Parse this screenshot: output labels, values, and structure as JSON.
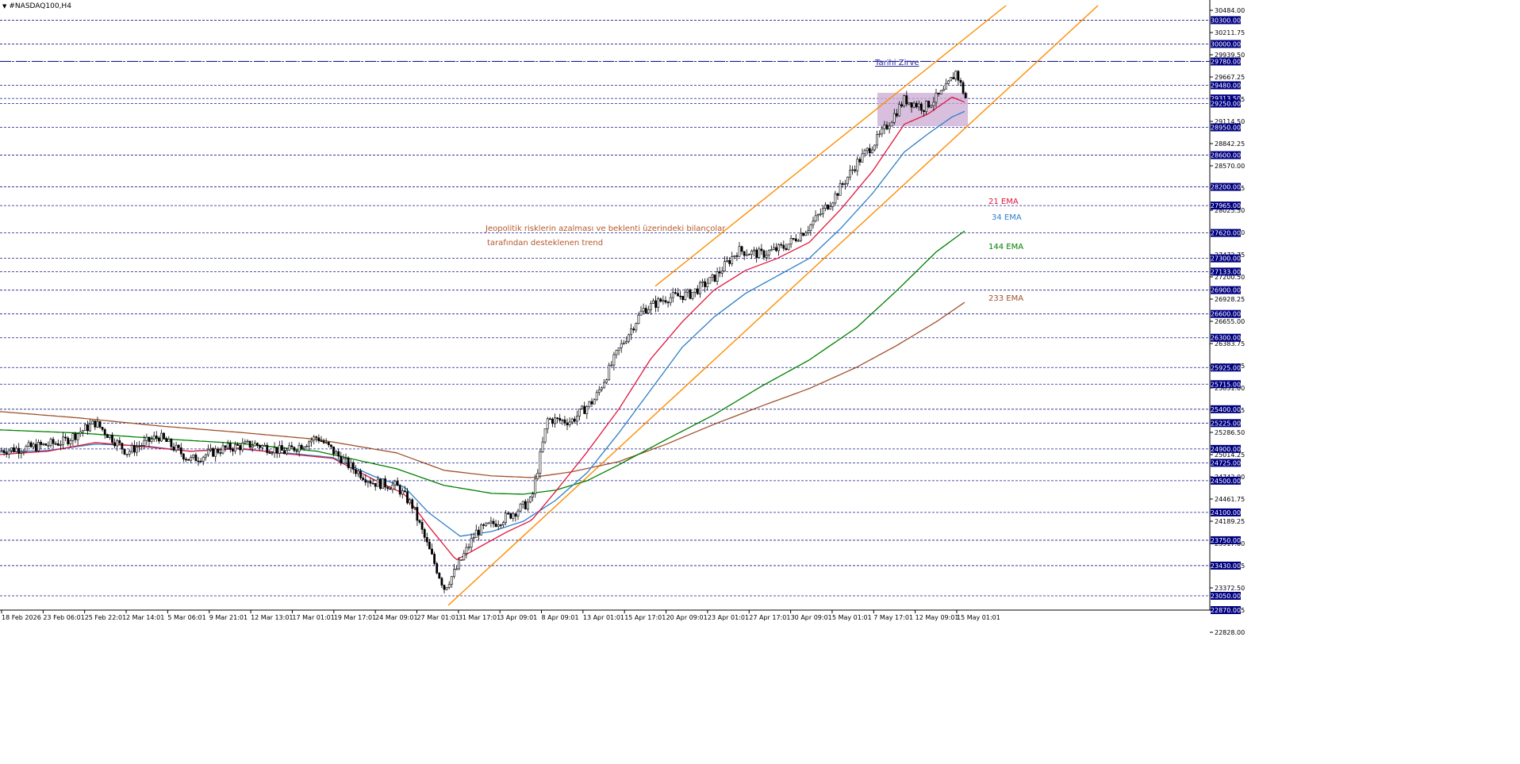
{
  "window": {
    "title": "#NASDAQ100,H4",
    "dropdown_icon": "triangle-down-icon"
  },
  "colors": {
    "background": "#ffffff",
    "grid": "#1a1a8c",
    "axis": "#000000",
    "candle": "#000000",
    "ema21": "#e0163a",
    "ema34": "#2f7fc8",
    "ema144": "#008000",
    "ema233": "#a0522d",
    "channel": "#ff8c00",
    "level_label_bg": "#000080",
    "level_label_text": "#ffffff",
    "zone": "#c9a9d1",
    "ath_line": "#1a1a8c",
    "ath_text": "#2b2b9c",
    "trend_text": "#b5582a"
  },
  "chart_data": {
    "type": "candlestick",
    "title": "#NASDAQ100,H4",
    "ylim": [
      22870,
      30484
    ],
    "x_tick_labels": [
      "18 Feb 2026",
      "23 Feb 06:01",
      "25 Feb 22:01",
      "2 Mar 14:01",
      "5 Mar 06:01",
      "9 Mar 21:01",
      "12 Mar 13:01",
      "17 Mar 01:01",
      "19 Mar 17:01",
      "24 Mar 09:01",
      "27 Mar 01:01",
      "31 Mar 17:01",
      "3 Apr 09:01",
      "8 Apr 09:01",
      "13 Apr 01:01",
      "15 Apr 17:01",
      "20 Apr 09:01",
      "23 Apr 01:01",
      "27 Apr 17:01",
      "30 Apr 09:01",
      "5 May 01:01",
      "7 May 17:01",
      "12 May 09:01",
      "15 May 01:01"
    ],
    "y_tick_labels": [
      "30484.00",
      "30211.75",
      "29939.50",
      "29667.25",
      "29386.75",
      "29114.50",
      "28842.25",
      "28570.00",
      "28297.75",
      "28025.50",
      "27745.00",
      "27472.75",
      "27200.50",
      "26928.25",
      "26655.00",
      "26383.75",
      "26103.25",
      "25831.00",
      "25558.75",
      "25286.50",
      "25014.25",
      "24742.00",
      "24461.75",
      "24189.25",
      "23917.00",
      "23644.75",
      "23372.50",
      "23100.25",
      "22828.00"
    ],
    "levels": [
      "30300.00",
      "30000.00",
      "29780.00",
      "29480.00",
      "29313.50",
      "29250.00",
      "28950.00",
      "28600.00",
      "28200.00",
      "27965.00",
      "27620.00",
      "27300.00",
      "27133.00",
      "26900.00",
      "26600.00",
      "26300.00",
      "25925.00",
      "25715.00",
      "25400.00",
      "25225.00",
      "24900.00",
      "24725.00",
      "24500.00",
      "24100.00",
      "23750.00",
      "23430.00",
      "23050.00",
      "22870.00"
    ],
    "all_time_high": {
      "label": "Tarihi Zirve",
      "value": 29780
    },
    "trend_annotation": [
      "Jeopolitik risklerin azalması ve beklenti üzerindeki bilançolar",
      "tarafından desteklenen trend"
    ],
    "indicator_labels": {
      "ema21": "21 EMA",
      "ema34": "34 EMA",
      "ema144": "144 EMA",
      "ema233": "233 EMA"
    },
    "series": [
      {
        "name": "close",
        "points": [
          [
            0,
            24880
          ],
          [
            40,
            24920
          ],
          [
            80,
            24990
          ],
          [
            120,
            25230
          ],
          [
            160,
            24860
          ],
          [
            200,
            25060
          ],
          [
            240,
            24760
          ],
          [
            280,
            24900
          ],
          [
            320,
            24960
          ],
          [
            360,
            24860
          ],
          [
            400,
            25050
          ],
          [
            440,
            24690
          ],
          [
            470,
            24480
          ],
          [
            500,
            24430
          ],
          [
            520,
            24180
          ],
          [
            540,
            23650
          ],
          [
            560,
            23150
          ],
          [
            575,
            23380
          ],
          [
            600,
            23850
          ],
          [
            640,
            24050
          ],
          [
            670,
            24250
          ],
          [
            690,
            25270
          ],
          [
            720,
            25250
          ],
          [
            750,
            25530
          ],
          [
            780,
            26150
          ],
          [
            810,
            26650
          ],
          [
            840,
            26800
          ],
          [
            870,
            26850
          ],
          [
            900,
            27050
          ],
          [
            930,
            27400
          ],
          [
            960,
            27350
          ],
          [
            990,
            27450
          ],
          [
            1020,
            27700
          ],
          [
            1050,
            28050
          ],
          [
            1080,
            28500
          ],
          [
            1110,
            28850
          ],
          [
            1140,
            29300
          ],
          [
            1165,
            29200
          ],
          [
            1190,
            29400
          ],
          [
            1205,
            29650
          ],
          [
            1218,
            29300
          ]
        ]
      },
      {
        "name": "21 EMA",
        "points": [
          [
            0,
            24830
          ],
          [
            60,
            24870
          ],
          [
            120,
            24980
          ],
          [
            180,
            24930
          ],
          [
            240,
            24870
          ],
          [
            300,
            24910
          ],
          [
            360,
            24840
          ],
          [
            420,
            24780
          ],
          [
            470,
            24520
          ],
          [
            510,
            24330
          ],
          [
            540,
            23930
          ],
          [
            575,
            23500
          ],
          [
            600,
            23640
          ],
          [
            640,
            23860
          ],
          [
            670,
            24000
          ],
          [
            700,
            24360
          ],
          [
            740,
            24860
          ],
          [
            780,
            25400
          ],
          [
            820,
            26030
          ],
          [
            860,
            26500
          ],
          [
            900,
            26900
          ],
          [
            940,
            27150
          ],
          [
            980,
            27300
          ],
          [
            1020,
            27500
          ],
          [
            1060,
            27920
          ],
          [
            1100,
            28400
          ],
          [
            1140,
            28990
          ],
          [
            1170,
            29120
          ],
          [
            1200,
            29330
          ],
          [
            1218,
            29260
          ]
        ]
      },
      {
        "name": "34 EMA",
        "points": [
          [
            0,
            24860
          ],
          [
            60,
            24880
          ],
          [
            120,
            24960
          ],
          [
            180,
            24940
          ],
          [
            240,
            24870
          ],
          [
            300,
            24900
          ],
          [
            360,
            24850
          ],
          [
            420,
            24790
          ],
          [
            470,
            24560
          ],
          [
            510,
            24420
          ],
          [
            540,
            24100
          ],
          [
            580,
            23800
          ],
          [
            620,
            23860
          ],
          [
            660,
            23990
          ],
          [
            700,
            24250
          ],
          [
            740,
            24600
          ],
          [
            780,
            25100
          ],
          [
            820,
            25640
          ],
          [
            860,
            26180
          ],
          [
            900,
            26560
          ],
          [
            940,
            26860
          ],
          [
            980,
            27080
          ],
          [
            1020,
            27300
          ],
          [
            1060,
            27680
          ],
          [
            1100,
            28120
          ],
          [
            1140,
            28640
          ],
          [
            1170,
            28870
          ],
          [
            1200,
            29080
          ],
          [
            1218,
            29160
          ]
        ]
      },
      {
        "name": "144 EMA",
        "points": [
          [
            0,
            25140
          ],
          [
            100,
            25100
          ],
          [
            200,
            25030
          ],
          [
            300,
            24970
          ],
          [
            400,
            24870
          ],
          [
            500,
            24650
          ],
          [
            560,
            24440
          ],
          [
            620,
            24340
          ],
          [
            660,
            24330
          ],
          [
            700,
            24380
          ],
          [
            740,
            24500
          ],
          [
            780,
            24700
          ],
          [
            840,
            25020
          ],
          [
            900,
            25330
          ],
          [
            960,
            25690
          ],
          [
            1020,
            26020
          ],
          [
            1080,
            26430
          ],
          [
            1130,
            26890
          ],
          [
            1180,
            27380
          ],
          [
            1218,
            27660
          ]
        ]
      },
      {
        "name": "233 EMA",
        "points": [
          [
            0,
            25370
          ],
          [
            100,
            25290
          ],
          [
            200,
            25190
          ],
          [
            300,
            25110
          ],
          [
            400,
            25020
          ],
          [
            500,
            24850
          ],
          [
            560,
            24630
          ],
          [
            620,
            24560
          ],
          [
            670,
            24540
          ],
          [
            720,
            24610
          ],
          [
            780,
            24740
          ],
          [
            840,
            24960
          ],
          [
            900,
            25210
          ],
          [
            960,
            25440
          ],
          [
            1020,
            25660
          ],
          [
            1080,
            25930
          ],
          [
            1130,
            26200
          ],
          [
            1180,
            26500
          ],
          [
            1218,
            26760
          ]
        ]
      }
    ],
    "channel_lines": [
      {
        "x0": 826,
        "y0": 26950,
        "x1": 1268,
        "y1": 30484
      },
      {
        "x0": 565,
        "y0": 22930,
        "x1": 1384,
        "y1": 30484
      }
    ],
    "resistance_zone": {
      "x0": 1106,
      "x1": 1220,
      "y_top": 29385,
      "y_bottom": 28965
    },
    "grid": true,
    "legend": "none"
  }
}
